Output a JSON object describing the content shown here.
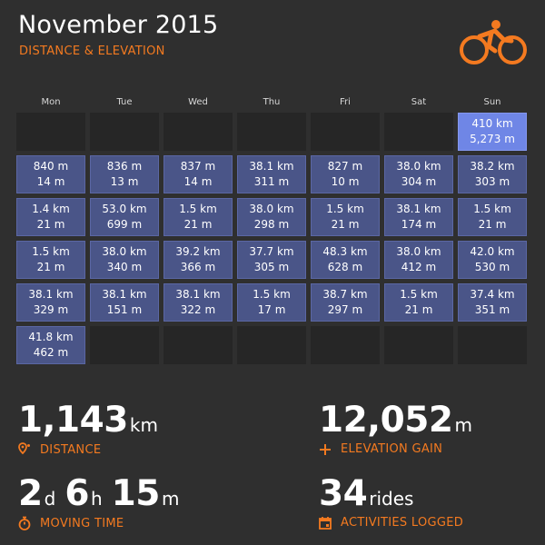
{
  "header": {
    "title": "November 2015",
    "subtitle": "DISTANCE & ELEVATION",
    "logo_icon": "cyclist-icon",
    "accent_color": "#f47a20"
  },
  "calendar": {
    "weekdays": [
      "Mon",
      "Tue",
      "Wed",
      "Thu",
      "Fri",
      "Sat",
      "Sun"
    ],
    "cells": [
      {
        "type": "empty"
      },
      {
        "type": "empty"
      },
      {
        "type": "empty"
      },
      {
        "type": "empty"
      },
      {
        "type": "empty"
      },
      {
        "type": "empty"
      },
      {
        "type": "total",
        "distance": "410 km",
        "elevation": "5,273 m"
      },
      {
        "type": "ride",
        "distance": "840 m",
        "elevation": "14 m"
      },
      {
        "type": "ride",
        "distance": "836 m",
        "elevation": "13 m"
      },
      {
        "type": "ride",
        "distance": "837 m",
        "elevation": "14 m"
      },
      {
        "type": "ride",
        "distance": "38.1 km",
        "elevation": "311 m"
      },
      {
        "type": "ride",
        "distance": "827 m",
        "elevation": "10 m"
      },
      {
        "type": "ride",
        "distance": "38.0 km",
        "elevation": "304 m"
      },
      {
        "type": "ride",
        "distance": "38.2 km",
        "elevation": "303 m"
      },
      {
        "type": "ride",
        "distance": "1.4 km",
        "elevation": "21 m"
      },
      {
        "type": "ride",
        "distance": "53.0 km",
        "elevation": "699 m"
      },
      {
        "type": "ride",
        "distance": "1.5 km",
        "elevation": "21 m"
      },
      {
        "type": "ride",
        "distance": "38.0 km",
        "elevation": "298 m"
      },
      {
        "type": "ride",
        "distance": "1.5 km",
        "elevation": "21 m"
      },
      {
        "type": "ride",
        "distance": "38.1 km",
        "elevation": "174 m"
      },
      {
        "type": "ride",
        "distance": "1.5 km",
        "elevation": "21 m"
      },
      {
        "type": "ride",
        "distance": "1.5 km",
        "elevation": "21 m"
      },
      {
        "type": "ride",
        "distance": "38.0 km",
        "elevation": "340 m"
      },
      {
        "type": "ride",
        "distance": "39.2 km",
        "elevation": "366 m"
      },
      {
        "type": "ride",
        "distance": "37.7 km",
        "elevation": "305 m"
      },
      {
        "type": "ride",
        "distance": "48.3 km",
        "elevation": "628 m"
      },
      {
        "type": "ride",
        "distance": "38.0 km",
        "elevation": "412 m"
      },
      {
        "type": "ride",
        "distance": "42.0 km",
        "elevation": "530 m"
      },
      {
        "type": "ride",
        "distance": "38.1 km",
        "elevation": "329 m"
      },
      {
        "type": "ride",
        "distance": "38.1 km",
        "elevation": "151 m"
      },
      {
        "type": "ride",
        "distance": "38.1 km",
        "elevation": "322 m"
      },
      {
        "type": "ride",
        "distance": "1.5 km",
        "elevation": "17 m"
      },
      {
        "type": "ride",
        "distance": "38.7 km",
        "elevation": "297 m"
      },
      {
        "type": "ride",
        "distance": "1.5 km",
        "elevation": "21 m"
      },
      {
        "type": "ride",
        "distance": "37.4 km",
        "elevation": "351 m"
      },
      {
        "type": "ride",
        "distance": "41.8 km",
        "elevation": "462 m"
      },
      {
        "type": "empty"
      },
      {
        "type": "empty"
      },
      {
        "type": "empty"
      },
      {
        "type": "empty"
      },
      {
        "type": "empty"
      },
      {
        "type": "empty"
      }
    ]
  },
  "stats": {
    "distance": {
      "value": "1,143",
      "unit": "km",
      "label": "DISTANCE",
      "icon": "route-pin-icon"
    },
    "elevation": {
      "value": "12,052",
      "unit": "m",
      "label": "ELEVATION GAIN",
      "icon": "plus-icon"
    },
    "moving_time": {
      "days": "2",
      "days_unit": "d",
      "hours": "6",
      "hours_unit": "h",
      "minutes": "15",
      "minutes_unit": "m",
      "label": "MOVING TIME",
      "icon": "stopwatch-icon"
    },
    "activities": {
      "value": "34",
      "unit": "rides",
      "label": "ACTIVITIES LOGGED",
      "icon": "calendar-icon"
    }
  }
}
